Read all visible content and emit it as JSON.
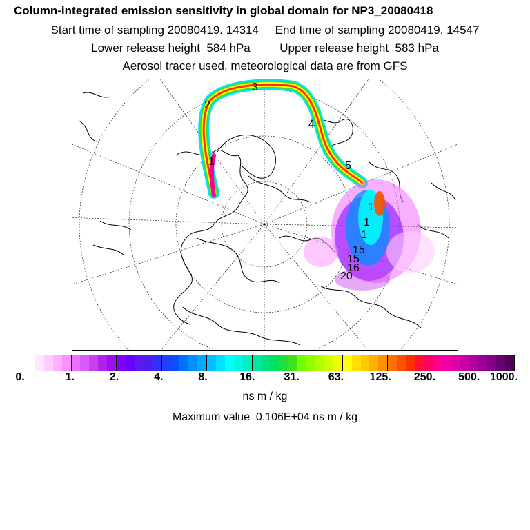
{
  "header": {
    "title": "Column-integrated emission sensitivity in global domain for NP3_20080418",
    "sampling_line": "Start time of sampling 20080419. 14314     End time of sampling 20080419. 14547",
    "release_line": "Lower release height  584 hPa         Upper release height  583 hPa",
    "tracer_line": "Aerosol tracer used, meteorological data are from GFS"
  },
  "map": {
    "projection": "polar-stereographic-north",
    "day_labels": [
      {
        "text": "1"
      },
      {
        "text": "2"
      },
      {
        "text": "3"
      },
      {
        "text": "4"
      },
      {
        "text": "5"
      },
      {
        "text": "1"
      },
      {
        "text": "1"
      },
      {
        "text": "1"
      },
      {
        "text": "15"
      },
      {
        "text": "15"
      },
      {
        "text": "16"
      },
      {
        "text": "20"
      }
    ]
  },
  "colorbar": {
    "colors": [
      "#ffffff",
      "#ffe8ff",
      "#ffccff",
      "#ffb0ff",
      "#ff90ff",
      "#ee70ff",
      "#d95cf5",
      "#c840f0",
      "#b020f0",
      "#9a10f0",
      "#8000ff",
      "#6a00ff",
      "#5a1af0",
      "#4a20f0",
      "#3030ff",
      "#2040ff",
      "#0a50ff",
      "#0070ff",
      "#0090ff",
      "#00a8ff",
      "#00c0ff",
      "#00e0ff",
      "#00ffff",
      "#00f8e0",
      "#00f0c0",
      "#00e8a0",
      "#00e080",
      "#00e060",
      "#20e040",
      "#40e020",
      "#70ff00",
      "#90ff00",
      "#b0ff00",
      "#d0ff00",
      "#f0ff00",
      "#ffff00",
      "#ffe000",
      "#ffc800",
      "#ffb000",
      "#ff9000",
      "#ff7000",
      "#ff5000",
      "#ff3000",
      "#ff1030",
      "#ff0060",
      "#ff0090",
      "#f000a0",
      "#e000a8",
      "#c800a8",
      "#b000a0",
      "#980098",
      "#800088",
      "#680070",
      "#500058"
    ],
    "tick_labels": [
      "0.",
      "1.",
      "2.",
      "4.",
      "8.",
      "16.",
      "31.",
      "63.",
      "125.",
      "250.",
      "500.",
      "1000."
    ],
    "unit": "ns m / kg"
  },
  "max_value_line": "Maximum value  0.106E+04 ns m / kg"
}
